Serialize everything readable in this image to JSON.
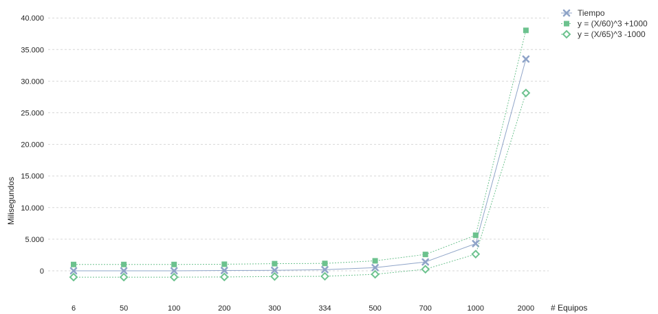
{
  "chart_data": {
    "type": "line",
    "categories": [
      "6",
      "50",
      "100",
      "200",
      "300",
      "334",
      "500",
      "700",
      "1000",
      "2000"
    ],
    "xlabel": "# Equipos",
    "ylabel": "Milisegundos",
    "ylim": [
      -3000,
      40000
    ],
    "yticks": [
      0,
      5000,
      10000,
      15000,
      20000,
      25000,
      30000,
      35000,
      40000
    ],
    "ytick_labels": [
      "0",
      "5.000",
      "10.000",
      "15.000",
      "20.000",
      "25.000",
      "30.000",
      "35.000",
      "40.000"
    ],
    "grid": true,
    "legend_position": "top-right",
    "series": [
      {
        "name": "Tiempo",
        "marker": "x",
        "line_style": "solid",
        "color": "#8fa4c8",
        "values": [
          0,
          0,
          0,
          50,
          80,
          180,
          500,
          1400,
          4300,
          33500
        ]
      },
      {
        "name": "y = (X/60)^3 +1000",
        "marker": "square",
        "line_style": "dotted",
        "color": "#6cc28e",
        "values": [
          1000,
          1000,
          1000,
          1040,
          1130,
          1170,
          1580,
          2590,
          5630,
          38040
        ]
      },
      {
        "name": "y = (X/65)^3 -1000",
        "marker": "diamond",
        "line_style": "dotted",
        "color": "#6cc28e",
        "values": [
          -1000,
          -1000,
          -1000,
          -970,
          -900,
          -870,
          -550,
          250,
          2640,
          28130
        ]
      }
    ]
  }
}
